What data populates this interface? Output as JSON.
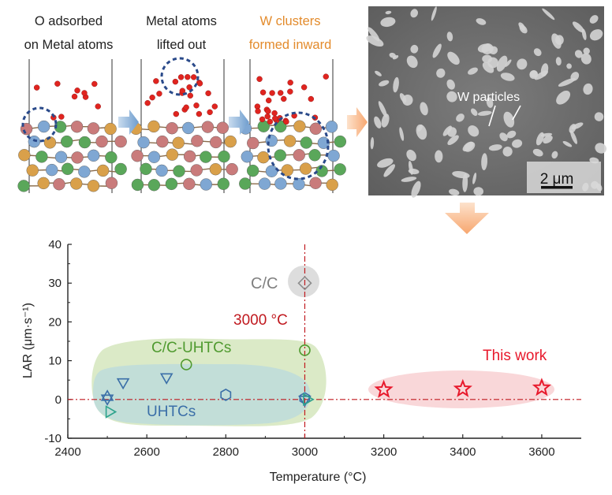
{
  "top_panels": {
    "labels": [
      {
        "line1": "O adsorbed",
        "line2": "on Metal atoms",
        "color": "#222222"
      },
      {
        "line1": "Metal atoms",
        "line2": "lifted out",
        "color": "#222222"
      },
      {
        "line1": "W clusters",
        "line2": "formed inward",
        "color": "#e38b2c"
      }
    ],
    "micrograph": {
      "annotation": "W particles",
      "scale_bar_label": "2 μm"
    }
  },
  "chart_data": {
    "type": "scatter",
    "xlabel": "Temperature (°C)",
    "ylabel": "LAR (μm·s⁻¹)",
    "xlim": [
      2400,
      3700
    ],
    "ylim": [
      -10,
      40
    ],
    "x_ticks": [
      2400,
      2600,
      2800,
      3000,
      3200,
      3400,
      3600
    ],
    "y_ticks": [
      -10,
      0,
      10,
      20,
      30,
      40
    ],
    "reference_lines": {
      "vertical": {
        "x": 3000,
        "label": "3000 °C",
        "color": "#c0191f"
      },
      "horizontal": {
        "y": 0,
        "color": "#c0191f"
      }
    },
    "series": [
      {
        "name": "C/C",
        "marker": "diamond",
        "color": "#8c8c8c",
        "points": [
          {
            "x": 3000,
            "y": 30
          }
        ]
      },
      {
        "name": "C/C-UHTCs",
        "marker": "circle",
        "color": "#4f9a2f",
        "points": [
          {
            "x": 2700,
            "y": 9
          },
          {
            "x": 3000,
            "y": 12.7
          }
        ]
      },
      {
        "name": "UHTCs",
        "marker": "triangle-down",
        "color": "#3b6fa8",
        "points": [
          {
            "x": 2540,
            "y": 4.5
          },
          {
            "x": 2650,
            "y": 5.8
          },
          {
            "x": 2500,
            "y": 0.3
          },
          {
            "x": 3000,
            "y": 0
          }
        ]
      },
      {
        "name": "UHTCs",
        "marker": "triangle-up",
        "color": "#3b6fa8",
        "points": [
          {
            "x": 2500,
            "y": 0.6
          }
        ]
      },
      {
        "name": "UHTCs",
        "marker": "hexagon",
        "color": "#3b6fa8",
        "points": [
          {
            "x": 2800,
            "y": 1.2
          },
          {
            "x": 3000,
            "y": 0.3
          }
        ]
      },
      {
        "name": "UHTCs",
        "marker": "triangle-right",
        "color": "#2da38c",
        "points": [
          {
            "x": 2505,
            "y": -3.2
          },
          {
            "x": 3005,
            "y": 0
          }
        ]
      },
      {
        "name": "This work",
        "marker": "star",
        "color": "#e8192c",
        "points": [
          {
            "x": 3200,
            "y": 2.5
          },
          {
            "x": 3400,
            "y": 2.7
          },
          {
            "x": 3600,
            "y": 3.0
          }
        ]
      }
    ],
    "annotations": [
      {
        "text": "C/C",
        "color": "#7f7f7f"
      },
      {
        "text": "C/C-UHTCs",
        "color": "#4f9a2f"
      },
      {
        "text": "UHTCs",
        "color": "#3b6fa8"
      },
      {
        "text": "This work",
        "color": "#e8192c"
      },
      {
        "text": "3000 °C",
        "color": "#c0191f"
      }
    ],
    "grid": false,
    "legend": "none"
  }
}
